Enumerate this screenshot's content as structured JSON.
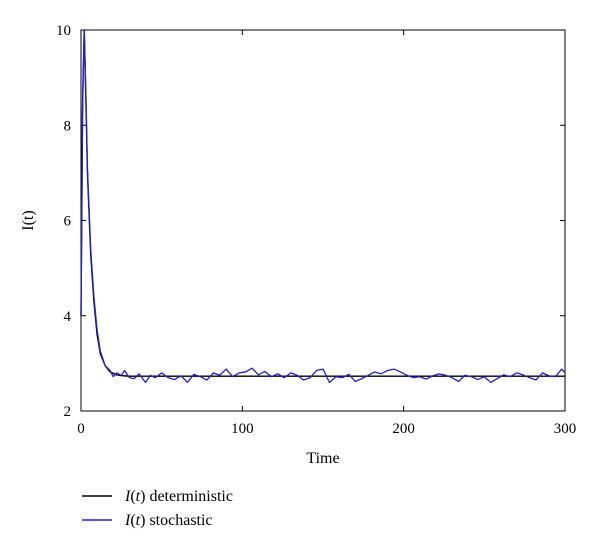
{
  "chart_data": {
    "type": "line",
    "xlabel": "Time",
    "ylabel": "I(t)",
    "xlim": [
      0,
      300
    ],
    "ylim": [
      2,
      10
    ],
    "x_ticks": [
      "0",
      "100",
      "200",
      "300"
    ],
    "y_ticks": [
      "2",
      "4",
      "6",
      "8",
      "10"
    ],
    "grid": false,
    "legend_position": "bottom-left, below plot",
    "series": [
      {
        "name": "I(t) deterministic",
        "color": "#000000",
        "x": [
          0,
          1,
          2,
          3,
          4,
          6,
          8,
          10,
          12,
          15,
          18,
          22,
          26,
          30,
          40,
          60,
          100,
          150,
          200,
          250,
          300
        ],
        "y": [
          4.0,
          8.5,
          10.0,
          8.6,
          7.0,
          5.3,
          4.3,
          3.6,
          3.2,
          2.95,
          2.82,
          2.76,
          2.74,
          2.73,
          2.73,
          2.73,
          2.73,
          2.73,
          2.73,
          2.73,
          2.73
        ]
      },
      {
        "name": "I(t) stochastic",
        "color": "#1f1fd6",
        "x": [
          0,
          1,
          2,
          3,
          4,
          6,
          8,
          10,
          12,
          15,
          18,
          20,
          22,
          25,
          27,
          30,
          33,
          36,
          40,
          43,
          46,
          50,
          54,
          58,
          62,
          66,
          70,
          74,
          78,
          82,
          86,
          90,
          94,
          98,
          102,
          106,
          110,
          114,
          118,
          122,
          126,
          130,
          134,
          138,
          142,
          146,
          150,
          154,
          158,
          162,
          166,
          170,
          174,
          178,
          182,
          186,
          190,
          194,
          198,
          202,
          206,
          210,
          214,
          218,
          222,
          226,
          230,
          234,
          238,
          242,
          246,
          250,
          254,
          258,
          262,
          266,
          270,
          274,
          278,
          282,
          286,
          290,
          294,
          298,
          300
        ],
        "y": [
          4.0,
          8.4,
          10.0,
          8.7,
          7.1,
          5.4,
          4.4,
          3.7,
          3.25,
          2.95,
          2.85,
          2.72,
          2.8,
          2.75,
          2.85,
          2.7,
          2.68,
          2.78,
          2.6,
          2.75,
          2.7,
          2.8,
          2.7,
          2.66,
          2.74,
          2.6,
          2.77,
          2.72,
          2.65,
          2.8,
          2.75,
          2.88,
          2.72,
          2.8,
          2.82,
          2.9,
          2.76,
          2.83,
          2.72,
          2.78,
          2.7,
          2.8,
          2.75,
          2.65,
          2.7,
          2.85,
          2.88,
          2.6,
          2.72,
          2.7,
          2.77,
          2.62,
          2.68,
          2.75,
          2.82,
          2.78,
          2.85,
          2.88,
          2.82,
          2.75,
          2.7,
          2.72,
          2.67,
          2.74,
          2.78,
          2.75,
          2.7,
          2.62,
          2.75,
          2.72,
          2.66,
          2.72,
          2.6,
          2.68,
          2.76,
          2.72,
          2.8,
          2.76,
          2.7,
          2.65,
          2.8,
          2.74,
          2.72,
          2.88,
          2.8
        ]
      }
    ]
  }
}
